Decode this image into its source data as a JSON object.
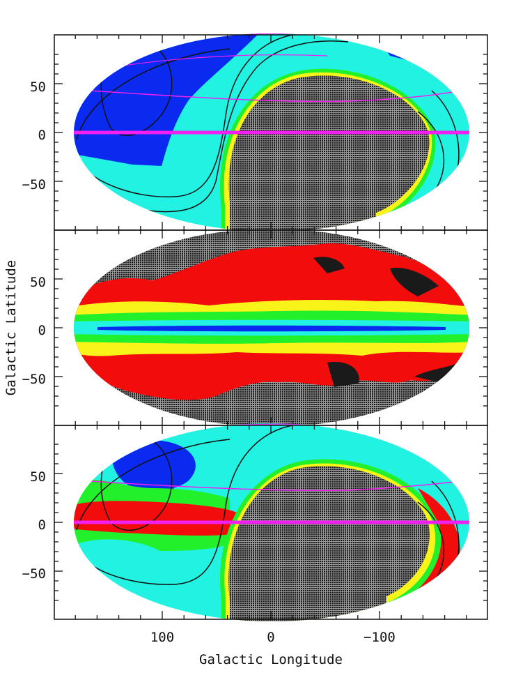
{
  "figure": {
    "xlabel": "Galactic Longitude",
    "ylabel": "Galactic Latitude"
  },
  "colors": {
    "black": "#1a1a1a",
    "dark_blue": "#0a2af0",
    "cyan": "#22f2e2",
    "green": "#22f02a",
    "yellow": "#f8f41a",
    "red": "#f20c0c",
    "magenta": "#f020f0",
    "contour": "#111111"
  },
  "chart_data": [
    {
      "type": "heatmap",
      "projection": "aitoff",
      "xlim": [
        180,
        -180
      ],
      "ylim": [
        -90,
        90
      ],
      "x_ticks": [
        100,
        0,
        -100
      ],
      "y_ticks": [
        50,
        0,
        -50
      ],
      "x_tick_labels": [
        "100",
        "0",
        "−100"
      ],
      "y_tick_labels": [
        "50",
        "0",
        "−50"
      ],
      "x_tick_labels_shown": false,
      "legend": "none",
      "color_levels": [
        "black",
        "dark_blue",
        "cyan",
        "green",
        "yellow"
      ],
      "equator_line": {
        "color": "magenta",
        "b": 0
      },
      "dec_parallel_lines": {
        "color": "magenta"
      },
      "exposure_contours": 3
    },
    {
      "type": "heatmap",
      "projection": "aitoff",
      "xlim": [
        180,
        -180
      ],
      "ylim": [
        -90,
        90
      ],
      "x_ticks": [
        100,
        0,
        -100
      ],
      "y_ticks": [
        50,
        0,
        -50
      ],
      "x_tick_labels": [
        "100",
        "0",
        "−100"
      ],
      "y_tick_labels": [
        "50",
        "0",
        "−50"
      ],
      "x_tick_labels_shown": false,
      "legend": "none",
      "color_levels": [
        "black",
        "red",
        "yellow",
        "green",
        "cyan",
        "dark_blue"
      ]
    },
    {
      "type": "heatmap",
      "projection": "aitoff",
      "xlim": [
        180,
        -180
      ],
      "ylim": [
        -90,
        90
      ],
      "x_ticks": [
        100,
        0,
        -100
      ],
      "y_ticks": [
        50,
        0,
        -50
      ],
      "x_tick_labels": [
        "100",
        "0",
        "−100"
      ],
      "y_tick_labels": [
        "50",
        "0",
        "−50"
      ],
      "x_tick_labels_shown": true,
      "legend": "none",
      "color_levels": [
        "black",
        "red",
        "green",
        "cyan",
        "dark_blue"
      ],
      "equator_line": {
        "color": "magenta",
        "b": 0
      },
      "dec_parallel_lines": {
        "color": "magenta"
      },
      "exposure_contours": 3
    }
  ]
}
